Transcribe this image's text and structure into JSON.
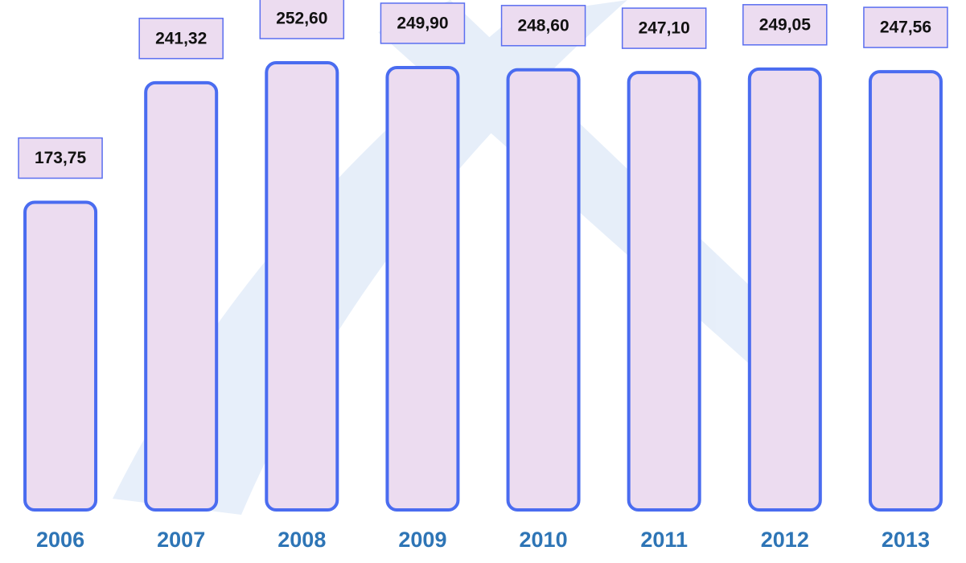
{
  "chart_data": {
    "type": "bar",
    "categories": [
      "2006",
      "2007",
      "2008",
      "2009",
      "2010",
      "2011",
      "2012",
      "2013"
    ],
    "values": [
      173.75,
      241.32,
      252.6,
      249.9,
      248.6,
      247.1,
      249.05,
      247.56
    ],
    "value_labels": [
      "173,75",
      "241,32",
      "252,60",
      "249,90",
      "248,60",
      "247,10",
      "249,05",
      "247,56"
    ],
    "color": "#ecdcf0"
  }
}
